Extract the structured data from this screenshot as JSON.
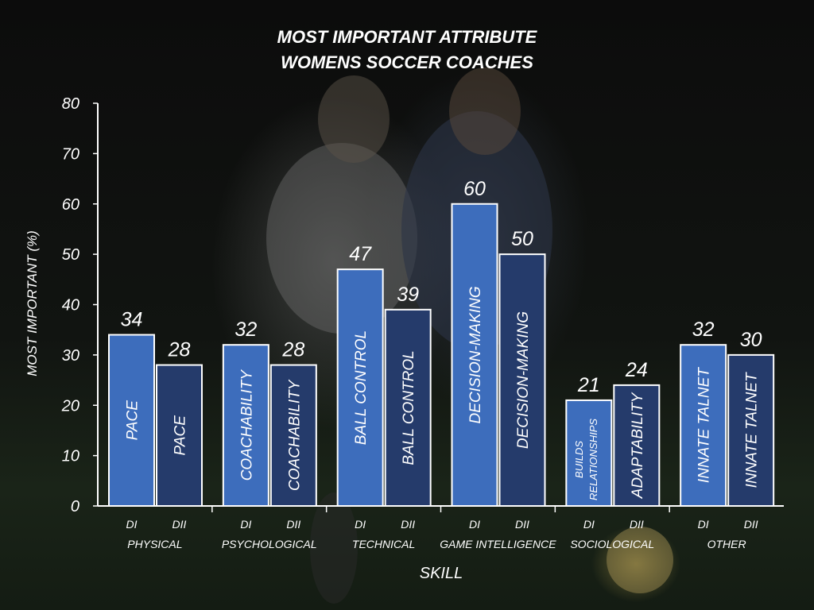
{
  "chart_data": {
    "type": "bar",
    "title": [
      "MOST IMPORTANT ATTRIBUTE",
      "WOMENS SOCCER COACHES"
    ],
    "xlabel": "SKILL",
    "ylabel": "MOST IMPORTANT (%)",
    "ylim": [
      0,
      80
    ],
    "yticks": [
      0,
      10,
      20,
      30,
      40,
      50,
      60,
      70,
      80
    ],
    "grid": false,
    "colors": {
      "DI": "#3d6dbc",
      "DII": "#253b6b",
      "edge": "#ffffff"
    },
    "groups": [
      {
        "name": "PHYSICAL",
        "bars": [
          {
            "division": "DI",
            "label": "PACE",
            "value": 34
          },
          {
            "division": "DII",
            "label": "PACE",
            "value": 28
          }
        ]
      },
      {
        "name": "PSYCHOLOGICAL",
        "bars": [
          {
            "division": "DI",
            "label": "COACHABILITY",
            "value": 32
          },
          {
            "division": "DII",
            "label": "COACHABILITY",
            "value": 28
          }
        ]
      },
      {
        "name": "TECHNICAL",
        "bars": [
          {
            "division": "DI",
            "label": "BALL CONTROL",
            "value": 47
          },
          {
            "division": "DII",
            "label": "BALL CONTROL",
            "value": 39
          }
        ]
      },
      {
        "name": "GAME INTELLIGENCE",
        "bars": [
          {
            "division": "DI",
            "label": "DECISION-MAKING",
            "value": 60
          },
          {
            "division": "DII",
            "label": "DECISION-MAKING",
            "value": 50
          }
        ]
      },
      {
        "name": "SOCIOLOGICAL",
        "bars": [
          {
            "division": "DI",
            "label": "BUILDS RELATIONSHIPS",
            "value": 21
          },
          {
            "division": "DII",
            "label": "ADAPTABILITY",
            "value": 24
          }
        ]
      },
      {
        "name": "OTHER",
        "bars": [
          {
            "division": "DI",
            "label": "INNATE TALNET",
            "value": 32
          },
          {
            "division": "DII",
            "label": "INNATE TALNET",
            "value": 30
          }
        ]
      }
    ]
  }
}
